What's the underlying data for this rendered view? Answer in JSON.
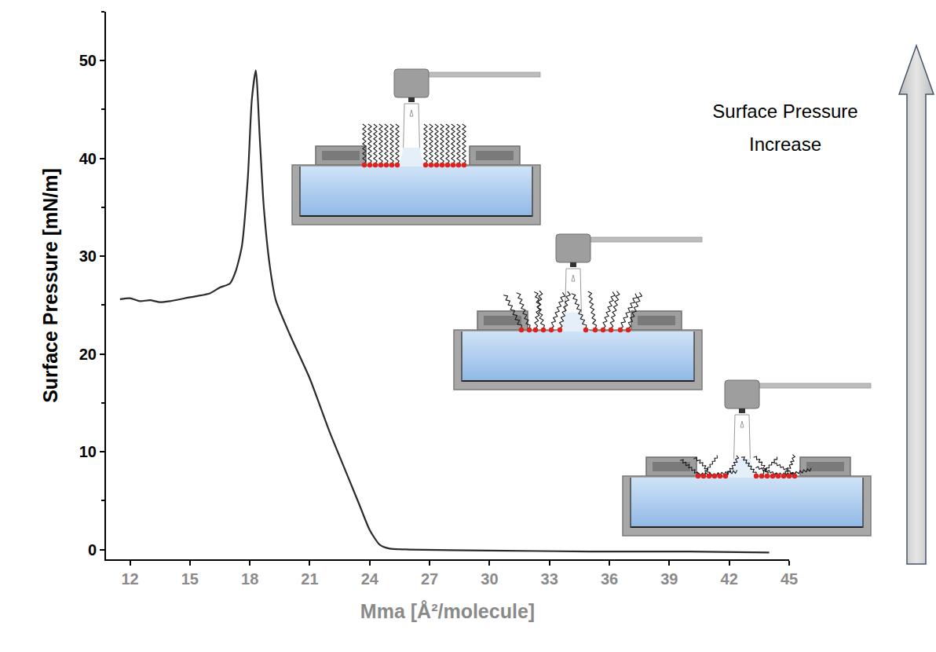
{
  "chart_data": {
    "type": "line",
    "x_label": "Mma [Å²/molecule]",
    "y_label": "Surface Pressure [mN/m]",
    "x": [
      11.5,
      12,
      12.5,
      13,
      13.5,
      14,
      15,
      16,
      16.5,
      17,
      17.3,
      17.6,
      17.9,
      18.1,
      18.3,
      18.5,
      18.7,
      19,
      19.3,
      20,
      21,
      22,
      23,
      23.5,
      24,
      24.5,
      25,
      26,
      30,
      35,
      40,
      44
    ],
    "values": [
      25.6,
      25.7,
      25.4,
      25.5,
      25.3,
      25.4,
      25.8,
      26.2,
      26.8,
      27.2,
      28.5,
      31,
      38,
      46,
      49,
      42,
      35,
      29,
      25.5,
      22,
      17.5,
      12,
      7,
      4.5,
      2,
      0.5,
      0.1,
      0,
      -0.1,
      -0.2,
      -0.2,
      -0.3
    ],
    "color": "#2b2b2b",
    "xlim": [
      10.8,
      45
    ],
    "ylim": [
      -1,
      55
    ],
    "xticks": [
      12,
      15,
      18,
      21,
      24,
      27,
      30,
      33,
      36,
      39,
      42,
      45
    ],
    "yticks": [
      0,
      10,
      20,
      30,
      40,
      50
    ],
    "grid": false,
    "annotations": [
      "Surface Pressure Increase"
    ]
  }
}
